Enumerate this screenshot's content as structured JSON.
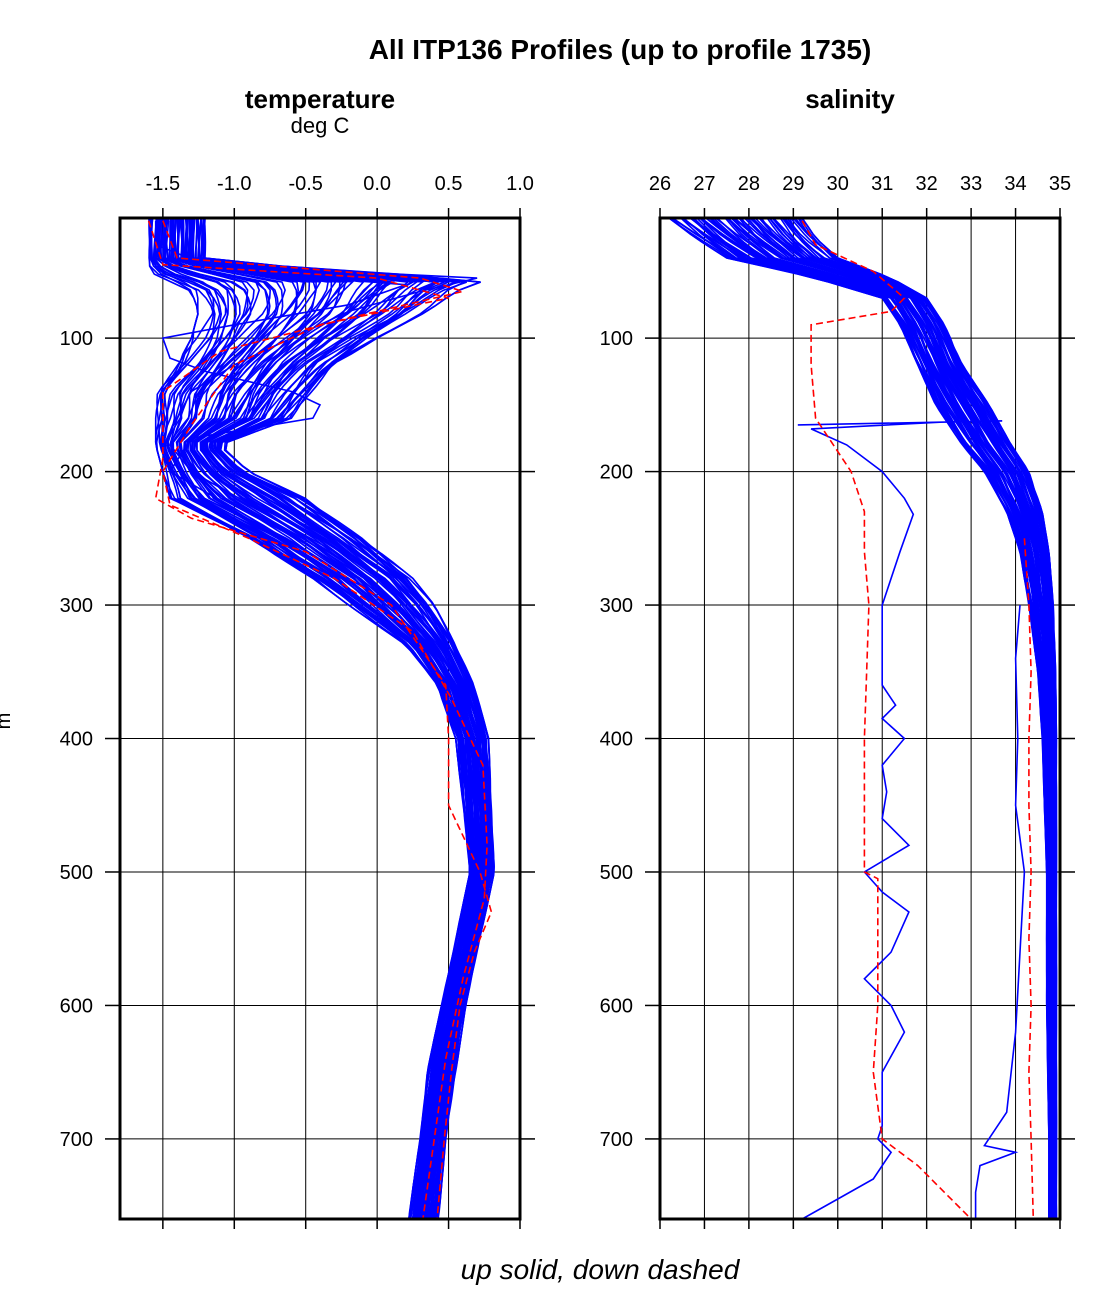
{
  "figure": {
    "title": "All ITP136 Profiles (up to profile 1735)",
    "caption": "up solid, down dashed",
    "y_axis_label_fragment": "m"
  },
  "colors": {
    "up_profiles": "#0000ff",
    "down_profiles": "#ff0000",
    "axes": "#000000",
    "grid": "#000000",
    "background": "#ffffff"
  },
  "chart_data": [
    {
      "type": "line",
      "title": "temperature",
      "xunit": "deg C",
      "xaxis_position": "top",
      "xlim": [
        -1.8,
        1.0
      ],
      "xticks": [
        -1.5,
        -1.0,
        -0.5,
        0.0,
        0.5,
        1.0
      ],
      "xtick_labels": [
        "-1.5",
        "-1.0",
        "-0.5",
        "0.0",
        "0.5",
        "1.0"
      ],
      "ylim": [
        10,
        760
      ],
      "yreversed": true,
      "yticks": [
        100,
        200,
        300,
        400,
        500,
        600,
        700
      ],
      "ytick_labels": [
        "100",
        "200",
        "300",
        "400",
        "500",
        "600",
        "700"
      ],
      "grid": true,
      "envelope": {
        "name": "up profiles (bulk)",
        "style": "solid",
        "depth": [
          10,
          40,
          50,
          55,
          65,
          80,
          100,
          120,
          140,
          160,
          180,
          200,
          220,
          250,
          280,
          300,
          330,
          360,
          400,
          450,
          500,
          550,
          600,
          650,
          700,
          760
        ],
        "temp_min": [
          -1.6,
          -1.6,
          -1.6,
          -1.5,
          -1.3,
          -1.25,
          -1.3,
          -1.4,
          -1.55,
          -1.55,
          -1.55,
          -1.5,
          -1.45,
          -0.9,
          -0.45,
          -0.2,
          0.2,
          0.42,
          0.55,
          0.6,
          0.65,
          0.55,
          0.45,
          0.35,
          0.3,
          0.22
        ],
        "temp_max": [
          -1.2,
          -1.2,
          -0.3,
          0.8,
          0.55,
          0.35,
          0.0,
          -0.3,
          -0.45,
          -0.6,
          -1.1,
          -0.9,
          -0.5,
          -0.1,
          0.25,
          0.4,
          0.55,
          0.68,
          0.78,
          0.8,
          0.82,
          0.72,
          0.62,
          0.55,
          0.48,
          0.43
        ]
      },
      "series": [
        {
          "style": "solid",
          "color": "up",
          "depth": [
            12,
            30,
            45,
            55,
            65,
            80,
            100,
            120,
            140,
            160,
            180,
            200,
            230,
            260,
            300,
            340,
            400,
            450,
            500,
            550,
            600,
            650,
            700,
            760
          ],
          "temp": [
            -1.55,
            -1.55,
            -1.2,
            0.7,
            0.3,
            -0.2,
            -0.6,
            -1.0,
            -1.3,
            -1.4,
            -1.45,
            -1.3,
            -0.8,
            -0.3,
            0.15,
            0.45,
            0.65,
            0.72,
            0.74,
            0.62,
            0.52,
            0.44,
            0.37,
            0.3
          ]
        },
        {
          "style": "solid",
          "color": "up",
          "depth": [
            12,
            40,
            50,
            60,
            75,
            90,
            100,
            115,
            125,
            140,
            150,
            160,
            175,
            200,
            240,
            300,
            360,
            420,
            500,
            600,
            700,
            760
          ],
          "temp": [
            -1.45,
            -1.45,
            -1.0,
            0.2,
            -0.2,
            -1.0,
            -1.5,
            -1.45,
            -1.2,
            -0.6,
            -0.4,
            -0.45,
            -1.3,
            -1.45,
            -0.8,
            0.1,
            0.55,
            0.72,
            0.74,
            0.5,
            0.35,
            0.28
          ]
        },
        {
          "style": "dashed",
          "color": "down",
          "depth": [
            12,
            40,
            55,
            65,
            85,
            110,
            140,
            160,
            190,
            220,
            235,
            260,
            300,
            360,
            400,
            450,
            500,
            530,
            560,
            600,
            650,
            700,
            760
          ],
          "temp": [
            -1.5,
            -1.4,
            0.3,
            0.6,
            -0.2,
            -1.1,
            -1.5,
            -1.5,
            -1.5,
            -1.55,
            -1.3,
            -0.5,
            0.1,
            0.48,
            0.5,
            0.5,
            0.72,
            0.8,
            0.68,
            0.58,
            0.52,
            0.47,
            0.42
          ]
        },
        {
          "style": "dashed",
          "color": "down",
          "depth": [
            12,
            45,
            55,
            70,
            90,
            120,
            150,
            165,
            200,
            225,
            250,
            280,
            320,
            370,
            420,
            480,
            520,
            580,
            640,
            700,
            760
          ],
          "temp": [
            -1.6,
            -1.5,
            0.0,
            0.5,
            -0.4,
            -1.0,
            -1.2,
            -1.3,
            -1.5,
            -1.45,
            -0.9,
            -0.3,
            0.25,
            0.52,
            0.74,
            0.77,
            0.75,
            0.6,
            0.48,
            0.4,
            0.32
          ]
        }
      ]
    },
    {
      "type": "line",
      "title": "salinity",
      "xaxis_position": "top",
      "xlim": [
        26,
        35
      ],
      "xticks": [
        26,
        27,
        28,
        29,
        30,
        31,
        32,
        33,
        34,
        35
      ],
      "xtick_labels": [
        "26",
        "27",
        "28",
        "29",
        "30",
        "31",
        "32",
        "33",
        "34",
        "35"
      ],
      "ylim": [
        10,
        760
      ],
      "yreversed": true,
      "yticks": [
        100,
        200,
        300,
        400,
        500,
        600,
        700
      ],
      "ytick_labels": [
        "100",
        "200",
        "300",
        "400",
        "500",
        "600",
        "700"
      ],
      "grid": true,
      "envelope": {
        "name": "up profiles (bulk)",
        "style": "solid",
        "depth": [
          10,
          25,
          40,
          55,
          70,
          90,
          120,
          150,
          180,
          200,
          230,
          260,
          300,
          350,
          400,
          500,
          600,
          700,
          760
        ],
        "sal_min": [
          26.2,
          26.8,
          27.5,
          29.5,
          31.0,
          31.4,
          31.8,
          32.2,
          32.8,
          33.3,
          33.8,
          34.1,
          34.3,
          34.5,
          34.6,
          34.7,
          34.7,
          34.75,
          34.75
        ],
        "sal_max": [
          29.2,
          29.5,
          30.0,
          31.2,
          32.0,
          32.4,
          32.8,
          33.4,
          33.9,
          34.3,
          34.6,
          34.75,
          34.85,
          34.9,
          34.92,
          34.92,
          34.92,
          34.92,
          34.92
        ]
      },
      "series": [
        {
          "style": "solid",
          "color": "up",
          "depth": [
            165,
            162,
            163,
            168,
            180,
            200,
            220,
            232,
            260,
            300,
            330,
            360,
            375,
            385,
            400,
            420,
            440,
            460,
            480,
            500,
            515,
            530,
            560,
            580,
            600,
            620,
            650,
            690,
            700,
            710,
            730,
            745,
            760
          ],
          "sal": [
            29.1,
            33.7,
            32.3,
            29.4,
            30.2,
            31.0,
            31.5,
            31.7,
            31.4,
            31.0,
            31.0,
            31.0,
            31.3,
            31.0,
            31.5,
            31.0,
            31.1,
            31.0,
            31.6,
            30.6,
            31.0,
            31.6,
            31.2,
            30.6,
            31.2,
            31.5,
            31.0,
            31.0,
            30.9,
            31.2,
            30.8,
            30.0,
            29.2
          ]
        },
        {
          "style": "dashed",
          "color": "down",
          "depth": [
            12,
            30,
            50,
            70,
            80,
            90,
            120,
            160,
            200,
            230,
            260,
            300,
            400,
            500,
            505,
            600,
            650,
            700,
            720,
            740,
            760
          ],
          "sal": [
            29.2,
            29.5,
            30.8,
            31.5,
            31.2,
            29.4,
            29.4,
            29.5,
            30.3,
            30.6,
            30.6,
            30.7,
            30.6,
            30.6,
            30.9,
            30.9,
            30.8,
            31.0,
            31.8,
            32.4,
            33.0
          ]
        },
        {
          "style": "solid",
          "color": "up",
          "depth": [
            300,
            340,
            400,
            450,
            500,
            560,
            620,
            680,
            705,
            710,
            720,
            740,
            760
          ],
          "sal": [
            34.1,
            34.0,
            34.05,
            34.0,
            34.2,
            34.1,
            34.0,
            33.8,
            33.3,
            34.0,
            33.2,
            33.1,
            33.1
          ]
        },
        {
          "style": "dashed",
          "color": "down",
          "depth": [
            250,
            300,
            350,
            400,
            450,
            500,
            550,
            600,
            650,
            700,
            760
          ],
          "sal": [
            34.2,
            34.3,
            34.35,
            34.3,
            34.3,
            34.35,
            34.3,
            34.35,
            34.3,
            34.35,
            34.4
          ]
        }
      ]
    }
  ]
}
